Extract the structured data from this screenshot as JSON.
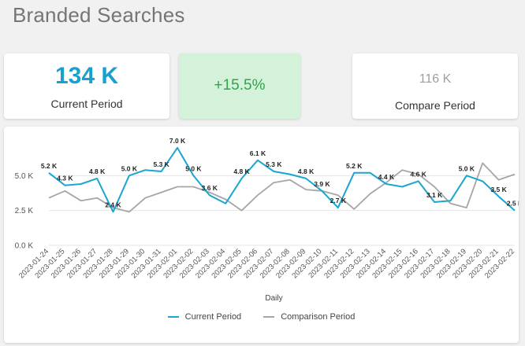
{
  "page": {
    "title": "Branded Searches"
  },
  "kpis": {
    "current": {
      "value": "134 K",
      "label": "Current Period"
    },
    "delta": {
      "value": "+15.5%"
    },
    "compare": {
      "value": "116 K",
      "label": "Compare Period"
    }
  },
  "colors": {
    "current": "#1aa6cf",
    "comparison": "#a6a6a6",
    "delta_bg": "#d4f1d9",
    "delta_text": "#2fa54c"
  },
  "chart_data": {
    "type": "line",
    "xlabel": "Daily",
    "ylim": [
      0,
      7500
    ],
    "yticks": [
      0,
      2500,
      5000
    ],
    "ytick_labels": [
      "0.0 K",
      "2.5 K",
      "5.0 K"
    ],
    "x": [
      "2023-01-24",
      "2023-01-25",
      "2023-01-26",
      "2023-01-27",
      "2023-01-28",
      "2023-01-29",
      "2023-01-30",
      "2023-01-31",
      "2023-02-01",
      "2023-02-02",
      "2023-02-03",
      "2023-02-04",
      "2023-02-05",
      "2023-02-06",
      "2023-02-07",
      "2023-02-08",
      "2023-02-09",
      "2023-02-10",
      "2023-02-11",
      "2023-02-12",
      "2023-02-13",
      "2023-02-14",
      "2023-02-15",
      "2023-02-16",
      "2023-02-17",
      "2023-02-18",
      "2023-02-19",
      "2023-02-20",
      "2023-02-21",
      "2023-02-22"
    ],
    "series": [
      {
        "name": "Current Period",
        "values": [
          5200,
          4300,
          4400,
          4800,
          2400,
          5000,
          5400,
          5300,
          7000,
          5000,
          3600,
          3000,
          4800,
          6100,
          5300,
          5100,
          4800,
          3900,
          2700,
          5200,
          5200,
          4400,
          4200,
          4600,
          3100,
          3200,
          5000,
          4600,
          3500,
          2500
        ],
        "labels": [
          "5.2 K",
          "4.3 K",
          "",
          "4.8 K",
          "2.4 K",
          "5.0 K",
          "",
          "5.3 K",
          "7.0 K",
          "5.0 K",
          "3.6 K",
          "",
          "4.8 K",
          "6.1 K",
          "5.3 K",
          "",
          "4.8 K",
          "3.9 K",
          "2.7 K",
          "5.2 K",
          "",
          "4.4 K",
          "",
          "4.6 K",
          "3.1 K",
          "",
          "5.0 K",
          "",
          "3.5 K",
          "2.5 K"
        ]
      },
      {
        "name": "Comparison Period",
        "values": [
          3400,
          3900,
          3200,
          3400,
          2700,
          2400,
          3400,
          3800,
          4200,
          4200,
          3800,
          3300,
          2500,
          3600,
          4500,
          4700,
          4000,
          3900,
          3600,
          2600,
          3700,
          4500,
          5400,
          5100,
          4200,
          3000,
          2700,
          5900,
          4700,
          5100
        ]
      }
    ],
    "legend_position": "bottom-center",
    "grid": true
  }
}
